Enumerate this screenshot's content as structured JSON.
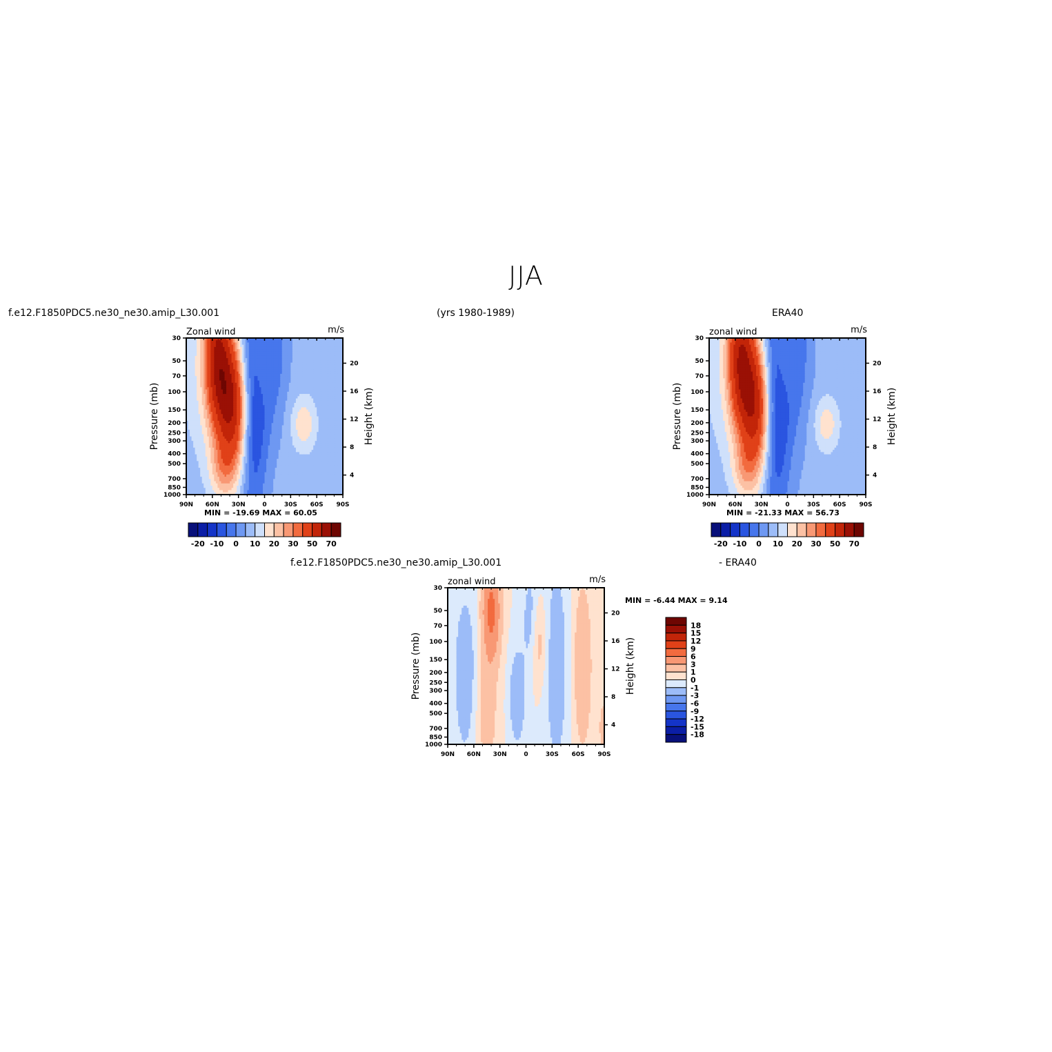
{
  "page": {
    "title": "JJA",
    "model_name_left": "f.e12.F1850PDC5.ne30_ne30.amip_L30.001",
    "years": "(yrs 1980-1989)",
    "obs_name": "ERA40",
    "diff_name_model": "f.e12.F1850PDC5.ne30_ne30.amip_L30.001",
    "diff_name_obs": "- ERA40"
  },
  "colors": {
    "full_palette": [
      "#08107a",
      "#0b1ea6",
      "#1434c8",
      "#2a55e0",
      "#4776ec",
      "#6e98f2",
      "#9cbcf8",
      "#cfe0fb",
      "#ffe2cf",
      "#fcc1a4",
      "#f89874",
      "#f26b3f",
      "#e04118",
      "#c22509",
      "#9a1005",
      "#6e0602"
    ],
    "diff_palette": [
      "#08107a",
      "#0b1ea6",
      "#1434c8",
      "#2a55e0",
      "#4776ec",
      "#6e98f2",
      "#9cbcf8",
      "#dceafc",
      "#ffffff",
      "#ffe2cf",
      "#fcc1a4",
      "#f89874",
      "#f26b3f",
      "#e04118",
      "#c22509",
      "#9a1005",
      "#6e0602"
    ]
  },
  "chart_data": [
    {
      "type": "heatmap",
      "name": "model",
      "title": "Zonal wind",
      "units": "m/s",
      "ylabel": "Pressure (mb)",
      "ylabel_right": "Height (km)",
      "x_ticks": [
        "90N",
        "60N",
        "30N",
        "0",
        "30S",
        "60S",
        "90S"
      ],
      "y_ticks": [
        "30",
        "50",
        "70",
        "100",
        "150",
        "200",
        "250",
        "300",
        "400",
        "500",
        "700",
        "850",
        "1000"
      ],
      "y_right_ticks": [
        "20",
        "16",
        "12",
        "8",
        "4"
      ],
      "min_max": "MIN = -19.69   MAX =   60.05",
      "min": -19.69,
      "max": 60.05,
      "colorbar_labels": [
        "-20",
        "-10",
        "0",
        "10",
        "20",
        "30",
        "50",
        "70"
      ],
      "levels": [
        -25,
        -20,
        -15,
        -10,
        -5,
        0,
        5,
        10,
        15,
        20,
        25,
        30,
        40,
        50,
        60,
        70
      ]
    },
    {
      "type": "heatmap",
      "name": "obs",
      "title": "zonal wind",
      "units": "m/s",
      "ylabel": "Pressure (mb)",
      "ylabel_right": "Height (km)",
      "x_ticks": [
        "90N",
        "60N",
        "30N",
        "0",
        "30S",
        "60S",
        "90S"
      ],
      "y_ticks": [
        "30",
        "50",
        "70",
        "100",
        "150",
        "200",
        "250",
        "300",
        "400",
        "500",
        "700",
        "850",
        "1000"
      ],
      "y_right_ticks": [
        "20",
        "16",
        "12",
        "8",
        "4"
      ],
      "min_max": "MIN = -21.33   MAX =   56.73",
      "min": -21.33,
      "max": 56.73,
      "colorbar_labels": [
        "-20",
        "-10",
        "0",
        "10",
        "20",
        "30",
        "50",
        "70"
      ]
    },
    {
      "type": "heatmap",
      "name": "difference",
      "title": "zonal wind",
      "units": "m/s",
      "ylabel": "Pressure (mb)",
      "ylabel_right": "Height (km)",
      "x_ticks": [
        "90N",
        "60N",
        "30N",
        "0",
        "30S",
        "60S",
        "90S"
      ],
      "y_ticks": [
        "30",
        "50",
        "70",
        "100",
        "150",
        "200",
        "250",
        "300",
        "400",
        "500",
        "700",
        "850",
        "1000"
      ],
      "y_right_ticks": [
        "20",
        "16",
        "12",
        "8",
        "4"
      ],
      "min_max": "MIN =   -6.44   MAX =     9.14",
      "min": -6.44,
      "max": 9.14,
      "colorbar_labels": [
        "18",
        "15",
        "12",
        "9",
        "6",
        "3",
        "1",
        "0",
        "-1",
        "-3",
        "-6",
        "-9",
        "-12",
        "-15",
        "-18"
      ]
    }
  ]
}
